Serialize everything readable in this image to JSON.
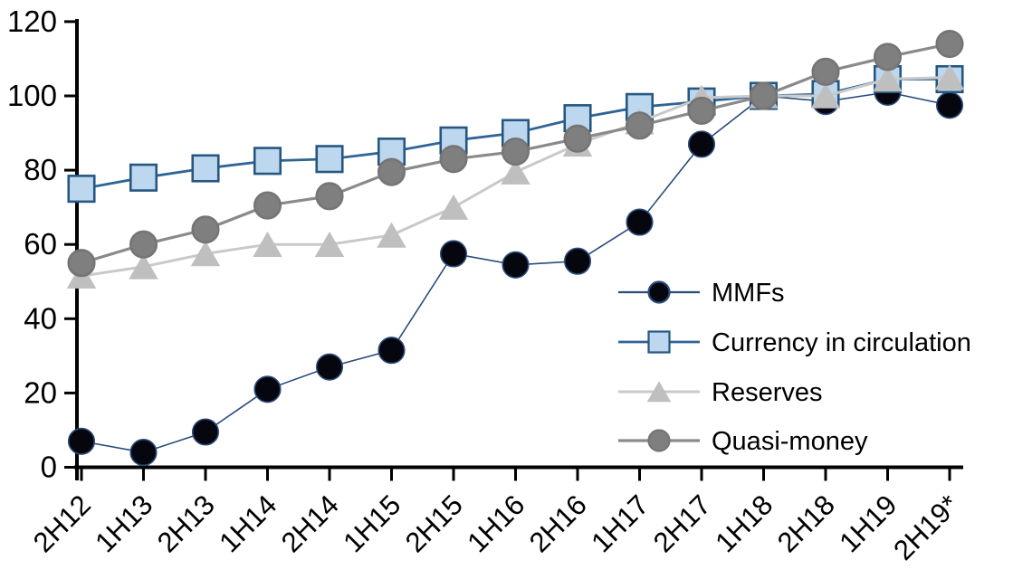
{
  "chart_data": {
    "type": "line",
    "title": "",
    "xlabel": "",
    "ylabel": "",
    "grid": false,
    "legend_position": "inside-right-middle",
    "ylim": [
      0,
      120
    ],
    "ytick_step": 20,
    "yticks": [
      "0",
      "20",
      "40",
      "60",
      "80",
      "100",
      "120"
    ],
    "categories": [
      "2H12",
      "1H13",
      "2H13",
      "1H14",
      "2H14",
      "1H15",
      "2H15",
      "1H16",
      "2H16",
      "1H17",
      "2H17",
      "1H18",
      "2H18",
      "1H19",
      "2H19*"
    ],
    "series": [
      {
        "name": "MMFs",
        "marker": "circle",
        "marker_fill": "#06060e",
        "marker_stroke": "#2a4b7c",
        "line_color": "#2a4b7c",
        "line_width": 1.6,
        "values": [
          7,
          4,
          9.5,
          21,
          27,
          31.5,
          57.5,
          54.5,
          55.5,
          66,
          87,
          100,
          98.5,
          101,
          97.5
        ]
      },
      {
        "name": "Currency in circulation",
        "marker": "square",
        "marker_fill": "#bdd7ee",
        "marker_stroke": "#255781",
        "line_color": "#2e6496",
        "line_width": 2.8,
        "values": [
          75,
          78,
          80.5,
          82.5,
          83,
          85,
          88,
          90,
          94,
          97,
          98.5,
          100,
          100.5,
          104.5,
          104.5
        ]
      },
      {
        "name": "Reserves",
        "marker": "triangle",
        "marker_fill": "#bfbfbf",
        "marker_stroke": "#bfbfbf",
        "line_color": "#c9c9c9",
        "line_width": 3,
        "values": [
          51.5,
          54,
          57.5,
          60,
          60,
          62.5,
          70,
          79.5,
          87,
          93,
          99.5,
          100,
          100,
          104.5,
          105
        ]
      },
      {
        "name": "Quasi-money",
        "marker": "circle",
        "marker_fill": "#7f7f7f",
        "marker_stroke": "#757575",
        "line_color": "#8a8a8a",
        "line_width": 3.2,
        "values": [
          55,
          60,
          64,
          70.5,
          73,
          79.5,
          83,
          85,
          88.5,
          92,
          96,
          100,
          106.5,
          110.5,
          114
        ]
      }
    ],
    "axis_color": "#000000"
  }
}
